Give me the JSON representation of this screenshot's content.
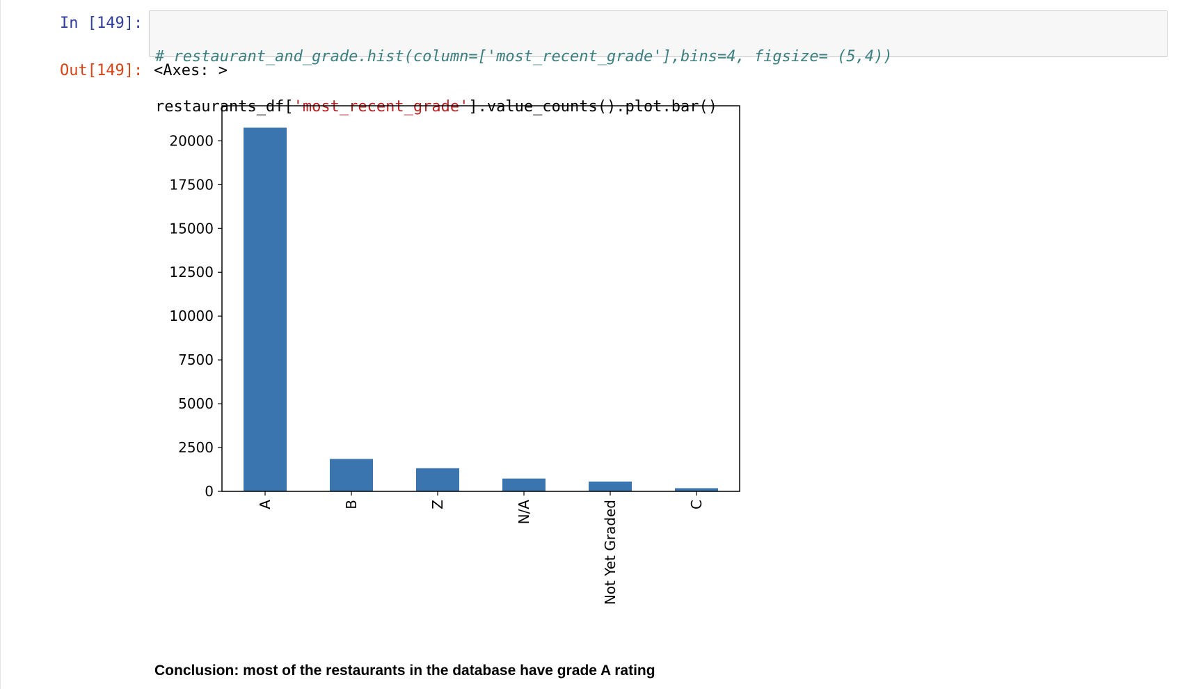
{
  "cells": {
    "input": {
      "prompt": "In [149]:",
      "line1": "# restaurant_and_grade.hist(column=['most_recent_grade'],bins=4, figsize= (5,4))",
      "line2": {
        "before": "restaurants_df[",
        "string": "'most_recent_grade'",
        "after": "].value_counts().plot.bar()"
      }
    },
    "output": {
      "prompt": "Out[149]:",
      "text": "<Axes: >"
    }
  },
  "chart_data": {
    "type": "bar",
    "categories": [
      "A",
      "B",
      "Z",
      "N/A",
      "Not Yet Graded",
      "C"
    ],
    "values": [
      20750,
      1850,
      1320,
      730,
      560,
      180
    ],
    "title": "",
    "xlabel": "",
    "ylabel": "",
    "ylim": [
      0,
      22000
    ],
    "yticks": [
      0,
      2500,
      5000,
      7500,
      10000,
      12500,
      15000,
      17500,
      20000
    ],
    "bar_color": "#3a75af",
    "grid": false,
    "legend": false
  },
  "conclusion": "Conclusion: most of the restaurants in the database have grade A rating"
}
